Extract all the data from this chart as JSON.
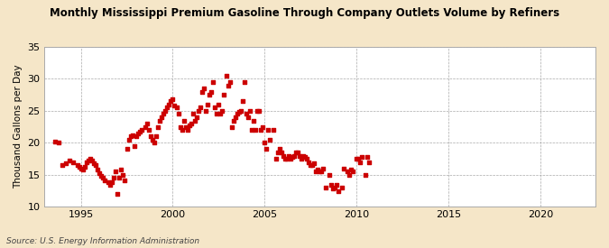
{
  "title": "Monthly Mississippi Premium Gasoline Through Company Outlets Volume by Refiners",
  "ylabel": "Thousand Gallons per Day",
  "source": "Source: U.S. Energy Information Administration",
  "background_color": "#f5e6c8",
  "plot_background_color": "#ffffff",
  "marker_color": "#cc0000",
  "marker": "s",
  "marker_size": 3,
  "xlim": [
    1993,
    2023
  ],
  "ylim": [
    10,
    35
  ],
  "yticks": [
    10,
    15,
    20,
    25,
    30,
    35
  ],
  "xticks": [
    1995,
    2000,
    2005,
    2010,
    2015,
    2020
  ],
  "data_x": [
    1993.6,
    1993.8,
    1994.0,
    1994.2,
    1994.4,
    1994.6,
    1994.8,
    1994.9,
    1995.0,
    1995.1,
    1995.2,
    1995.3,
    1995.4,
    1995.5,
    1995.6,
    1995.7,
    1995.8,
    1995.9,
    1996.0,
    1996.1,
    1996.2,
    1996.3,
    1996.5,
    1996.6,
    1996.7,
    1996.8,
    1996.9,
    1997.0,
    1997.1,
    1997.2,
    1997.3,
    1997.4,
    1997.5,
    1997.6,
    1997.7,
    1997.8,
    1997.9,
    1998.0,
    1998.1,
    1998.2,
    1998.3,
    1998.5,
    1998.6,
    1998.7,
    1998.8,
    1998.9,
    1999.0,
    1999.1,
    1999.2,
    1999.3,
    1999.4,
    1999.5,
    1999.6,
    1999.7,
    1999.8,
    1999.9,
    2000.0,
    2000.1,
    2000.2,
    2000.3,
    2000.4,
    2000.5,
    2000.6,
    2000.7,
    2000.8,
    2000.9,
    2001.0,
    2001.1,
    2001.2,
    2001.3,
    2001.4,
    2001.5,
    2001.6,
    2001.7,
    2001.8,
    2001.9,
    2002.0,
    2002.1,
    2002.2,
    2002.3,
    2002.4,
    2002.5,
    2002.6,
    2002.7,
    2002.8,
    2002.9,
    2003.0,
    2003.1,
    2003.2,
    2003.3,
    2003.4,
    2003.5,
    2003.6,
    2003.7,
    2003.8,
    2003.9,
    2004.0,
    2004.1,
    2004.2,
    2004.3,
    2004.4,
    2004.5,
    2004.6,
    2004.7,
    2004.8,
    2004.9,
    2005.0,
    2005.1,
    2005.2,
    2005.3,
    2005.5,
    2005.6,
    2005.7,
    2005.8,
    2005.9,
    2006.0,
    2006.1,
    2006.2,
    2006.3,
    2006.4,
    2006.5,
    2006.6,
    2006.7,
    2006.8,
    2006.9,
    2007.0,
    2007.1,
    2007.2,
    2007.3,
    2007.4,
    2007.5,
    2007.6,
    2007.7,
    2007.8,
    2007.9,
    2008.0,
    2008.1,
    2008.2,
    2008.3,
    2008.5,
    2008.6,
    2008.7,
    2008.8,
    2008.9,
    2009.0,
    2009.2,
    2009.3,
    2009.5,
    2009.6,
    2009.7,
    2009.8,
    2010.0,
    2010.1,
    2010.2,
    2010.3,
    2010.5,
    2010.6,
    2010.7
  ],
  "data_y": [
    20.2,
    20.0,
    16.5,
    16.8,
    17.2,
    17.0,
    16.5,
    16.2,
    16.0,
    15.8,
    16.2,
    17.0,
    17.3,
    17.5,
    17.2,
    16.8,
    16.5,
    15.8,
    15.2,
    14.8,
    14.5,
    14.2,
    13.8,
    13.5,
    13.8,
    14.5,
    15.5,
    12.0,
    14.5,
    15.8,
    15.0,
    14.2,
    19.0,
    20.5,
    21.0,
    21.2,
    19.5,
    21.0,
    21.5,
    21.8,
    22.0,
    22.5,
    23.0,
    22.0,
    21.0,
    20.5,
    20.0,
    21.0,
    22.5,
    23.5,
    24.0,
    24.5,
    25.0,
    25.5,
    26.0,
    26.5,
    26.8,
    25.8,
    25.5,
    24.5,
    22.5,
    22.0,
    23.5,
    22.5,
    22.0,
    22.8,
    23.0,
    24.5,
    23.5,
    24.0,
    25.0,
    25.5,
    28.0,
    28.5,
    25.0,
    26.0,
    27.5,
    28.0,
    29.5,
    25.5,
    24.5,
    26.0,
    24.5,
    25.0,
    27.5,
    30.5,
    29.0,
    29.5,
    22.5,
    23.5,
    24.0,
    24.5,
    24.8,
    25.0,
    26.5,
    29.5,
    24.5,
    24.0,
    25.0,
    22.0,
    23.5,
    22.0,
    25.0,
    25.0,
    22.0,
    22.5,
    20.0,
    19.0,
    22.0,
    20.5,
    22.0,
    17.5,
    18.5,
    19.0,
    18.5,
    18.0,
    17.5,
    17.5,
    18.0,
    17.5,
    17.8,
    18.0,
    18.5,
    18.5,
    18.0,
    17.5,
    18.0,
    17.8,
    17.5,
    17.0,
    16.5,
    16.5,
    16.8,
    15.5,
    15.8,
    15.5,
    15.5,
    16.0,
    13.0,
    15.0,
    13.5,
    12.8,
    13.0,
    13.5,
    12.5,
    13.0,
    16.0,
    15.5,
    15.0,
    15.8,
    15.5,
    17.5,
    17.5,
    17.0,
    17.8,
    15.0,
    17.8,
    17.0
  ]
}
